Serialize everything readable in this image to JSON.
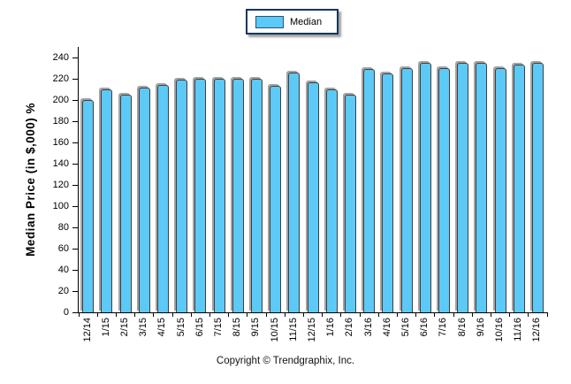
{
  "legend": {
    "label": "Median",
    "swatch_color": "#5cc9f7",
    "swatch_border_color": "#27537a",
    "box_border_color": "#17365d"
  },
  "y_axis": {
    "title": "Median Price (in $,000) %"
  },
  "footer": {
    "copyright": "Copyright © Trendgraphix, Inc."
  },
  "chart_data": {
    "type": "bar",
    "title": "",
    "xlabel": "",
    "ylabel": "Median Price (in $,000) %",
    "categories": [
      "12/14",
      "1/15",
      "2/15",
      "3/15",
      "4/15",
      "5/15",
      "6/15",
      "7/15",
      "8/15",
      "9/15",
      "10/15",
      "11/15",
      "12/15",
      "1/16",
      "2/16",
      "3/16",
      "4/16",
      "5/16",
      "6/16",
      "7/16",
      "8/16",
      "9/16",
      "10/16",
      "11/16",
      "12/16"
    ],
    "series": [
      {
        "name": "Median",
        "values": [
          200,
          210,
          205,
          212,
          214,
          219,
          220,
          220,
          220,
          220,
          213,
          226,
          217,
          210,
          205,
          229,
          225,
          230,
          235,
          230,
          235,
          235,
          230,
          233,
          235
        ]
      }
    ],
    "ylim": [
      0,
      250
    ],
    "yticks": [
      0,
      20,
      40,
      60,
      80,
      100,
      120,
      140,
      160,
      180,
      200,
      220,
      240
    ],
    "grid": false,
    "legend_position": "top-center",
    "bar_color": "#5cc9f7",
    "bar_border_color": "#3f3f3f",
    "bar_shadow_color": "#a3a3a3"
  }
}
